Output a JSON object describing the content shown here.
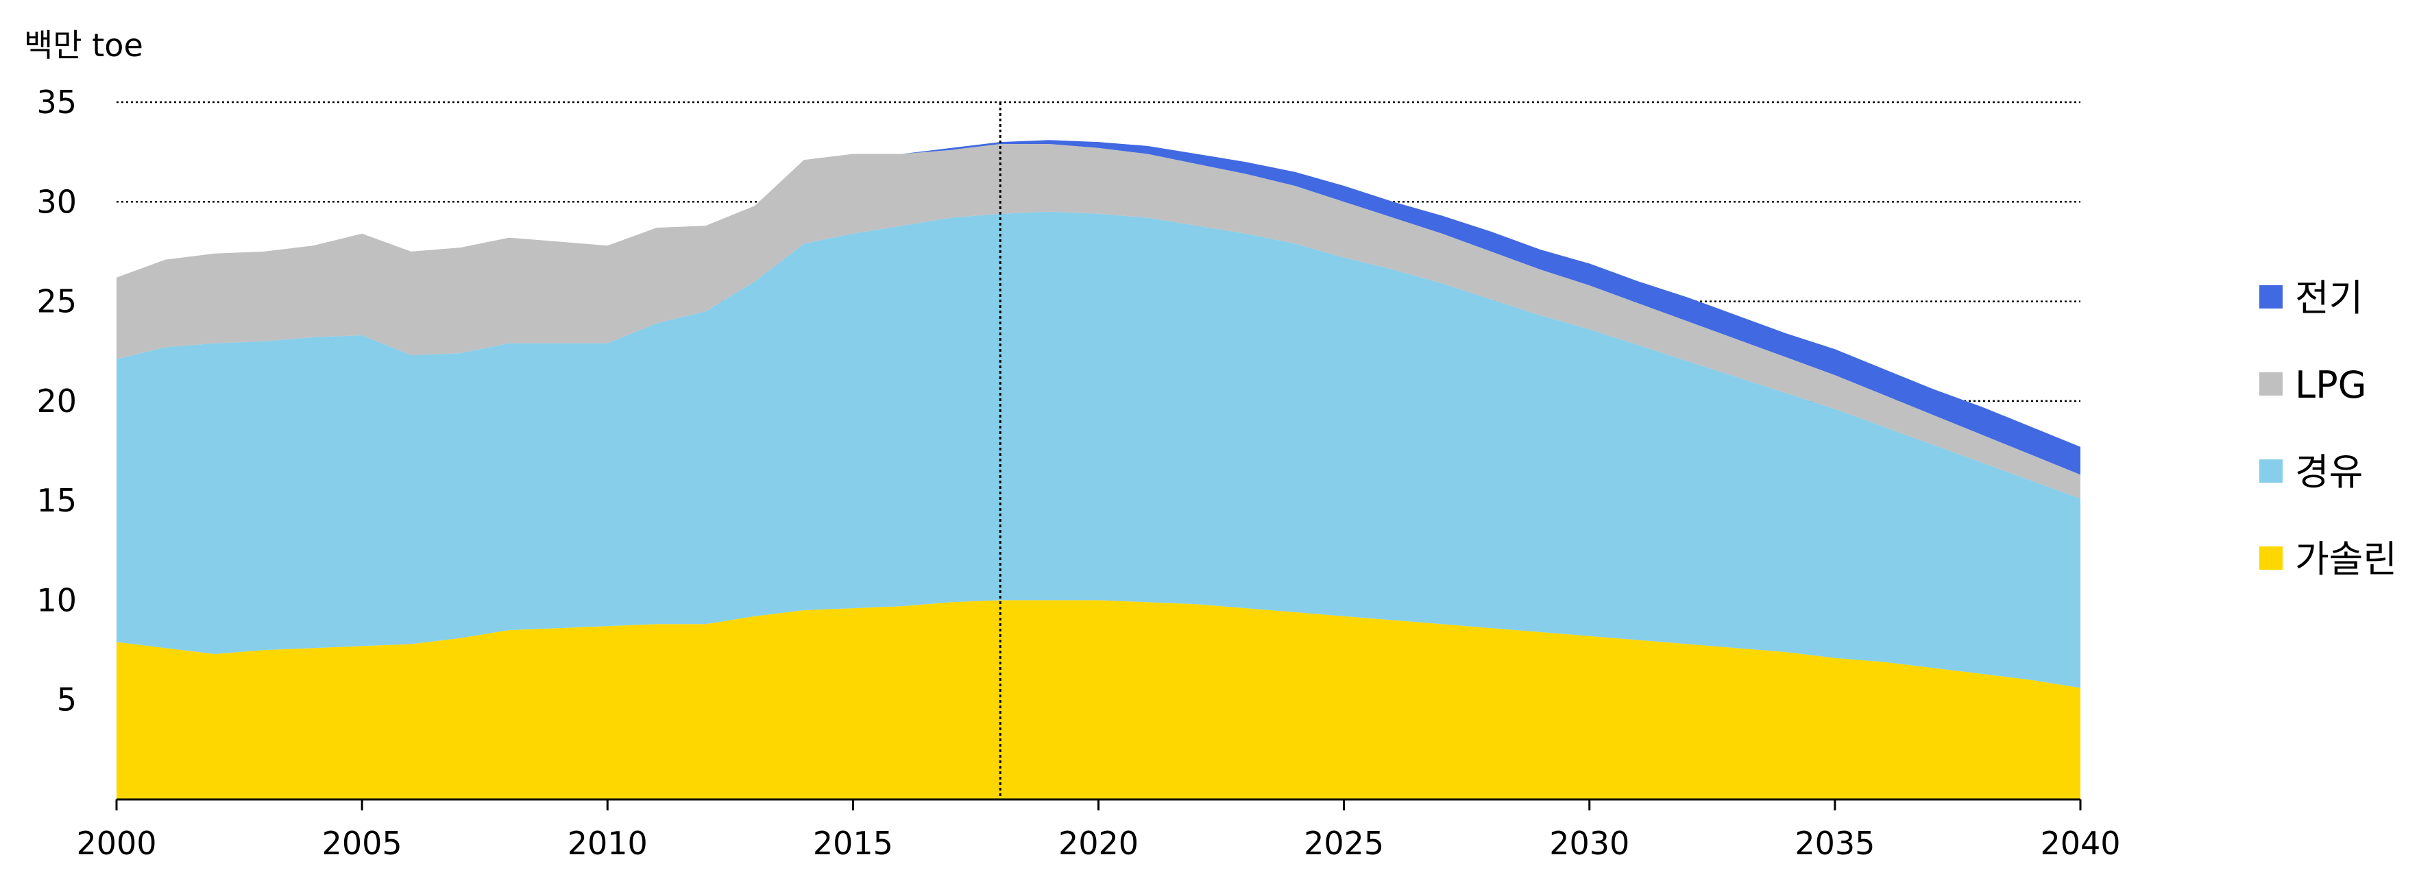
{
  "chart_data": {
    "type": "area",
    "stacked": true,
    "unit_label": "백만 toe",
    "x": [
      2000,
      2001,
      2002,
      2003,
      2004,
      2005,
      2006,
      2007,
      2008,
      2009,
      2010,
      2011,
      2012,
      2013,
      2014,
      2015,
      2016,
      2017,
      2018,
      2019,
      2020,
      2021,
      2022,
      2023,
      2024,
      2025,
      2026,
      2027,
      2028,
      2029,
      2030,
      2031,
      2032,
      2033,
      2034,
      2035,
      2036,
      2037,
      2038,
      2039,
      2040
    ],
    "xlim": [
      2000,
      2040
    ],
    "xticks": [
      "2000",
      "2005",
      "2010",
      "2015",
      "2020",
      "2025",
      "2030",
      "2035",
      "2040"
    ],
    "ylim": [
      0,
      35
    ],
    "yticks": [
      "5",
      "10",
      "15",
      "20",
      "25",
      "30",
      "35"
    ],
    "grid": "horizontal dotted",
    "reference_line_x": 2018,
    "legend_position": "right",
    "series": [
      {
        "name": "가솔린",
        "color": "#FFD700",
        "values": [
          7.9,
          7.6,
          7.3,
          7.5,
          7.6,
          7.7,
          7.8,
          8.1,
          8.5,
          8.6,
          8.7,
          8.8,
          8.8,
          9.2,
          9.5,
          9.6,
          9.7,
          9.9,
          10.0,
          10.0,
          10.0,
          9.9,
          9.8,
          9.6,
          9.4,
          9.2,
          9.0,
          8.8,
          8.6,
          8.4,
          8.2,
          8.0,
          7.8,
          7.6,
          7.4,
          7.1,
          6.9,
          6.6,
          6.3,
          6.0,
          5.6
        ]
      },
      {
        "name": "경유",
        "color": "#87CEEB",
        "values": [
          14.2,
          15.1,
          15.6,
          15.5,
          15.6,
          15.6,
          14.5,
          14.3,
          14.4,
          14.3,
          14.2,
          15.1,
          15.7,
          16.8,
          18.4,
          18.8,
          19.1,
          19.3,
          19.4,
          19.5,
          19.4,
          19.3,
          19.0,
          18.8,
          18.5,
          18.0,
          17.6,
          17.1,
          16.5,
          15.9,
          15.4,
          14.8,
          14.2,
          13.6,
          13.0,
          12.5,
          11.8,
          11.2,
          10.6,
          10.0,
          9.5
        ]
      },
      {
        "name": "LPG",
        "color": "#C0C0C0",
        "values": [
          4.1,
          4.4,
          4.5,
          4.5,
          4.6,
          5.1,
          5.2,
          5.3,
          5.3,
          5.1,
          4.9,
          4.8,
          4.3,
          3.8,
          4.2,
          4.0,
          3.6,
          3.4,
          3.5,
          3.4,
          3.3,
          3.2,
          3.1,
          3.0,
          2.9,
          2.8,
          2.6,
          2.5,
          2.4,
          2.3,
          2.2,
          2.1,
          2.0,
          1.9,
          1.8,
          1.7,
          1.6,
          1.5,
          1.4,
          1.3,
          1.2
        ]
      },
      {
        "name": "전기",
        "color": "#4169E1",
        "values": [
          0,
          0,
          0,
          0,
          0,
          0,
          0,
          0,
          0,
          0,
          0,
          0,
          0,
          0,
          0,
          0,
          0,
          0.1,
          0.1,
          0.2,
          0.3,
          0.4,
          0.5,
          0.6,
          0.7,
          0.8,
          0.8,
          0.9,
          1.0,
          1.0,
          1.1,
          1.1,
          1.2,
          1.2,
          1.2,
          1.3,
          1.3,
          1.3,
          1.4,
          1.4,
          1.4
        ]
      }
    ]
  }
}
